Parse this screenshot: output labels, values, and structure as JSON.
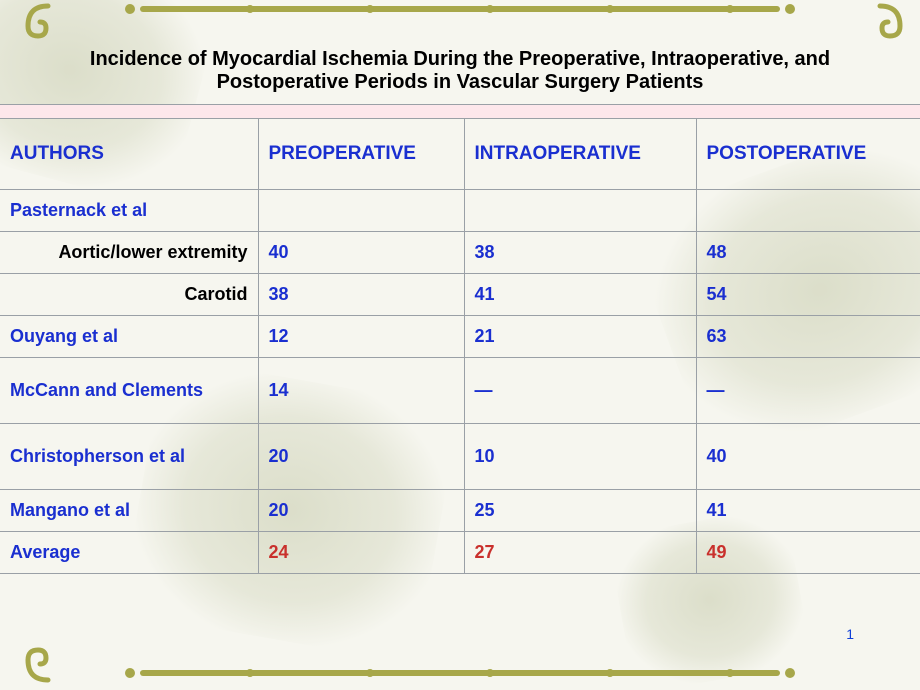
{
  "title": "Incidence of Myocardial Ischemia During the Preoperative, Intraoperative, and Postoperative Periods in Vascular Surgery Patients",
  "title_fontsize": 20,
  "headers": {
    "authors": "AUTHORS",
    "preop": "PREOPERATIVE",
    "intraop": "INTRAOPERATIVE",
    "postop": "POSTOPERATIVE"
  },
  "header_color": "#1a2fd0",
  "header_fontsize": 19,
  "strip_color": "#fde7eb",
  "rows": [
    {
      "kind": "author",
      "label": "Pasternack et al",
      "pre": "",
      "intra": "",
      "post": ""
    },
    {
      "kind": "sub",
      "label": "Aortic/lower extremity",
      "pre": "40",
      "intra": "38",
      "post": "48"
    },
    {
      "kind": "sub",
      "label": "Carotid",
      "pre": "38",
      "intra": "41",
      "post": "54"
    },
    {
      "kind": "author",
      "label": "Ouyang et al",
      "pre": "12",
      "intra": "21",
      "post": "63"
    },
    {
      "kind": "author",
      "label": "McCann and Clements",
      "pre": "14",
      "intra": "—",
      "post": "—",
      "height": "tall"
    },
    {
      "kind": "author",
      "label": "Christopherson et al",
      "pre": "20",
      "intra": "10",
      "post": "40",
      "height": "tall"
    },
    {
      "kind": "author",
      "label": "Mangano et al",
      "pre": "20",
      "intra": "25",
      "post": "41"
    },
    {
      "kind": "average",
      "label": "Average",
      "pre": "24",
      "intra": "27",
      "post": "49"
    }
  ],
  "author_color": "#1a2fd0",
  "sub_label_color": "#000000",
  "value_color": "#1a2fd0",
  "average_value_color": "#c9302c",
  "cell_fontsize": 18,
  "border_color": "#9aa0a6",
  "background_color": "#f6f6ef",
  "deco_color": "#a7a74a",
  "page_number": "1",
  "page_number_color": "#1040d8"
}
